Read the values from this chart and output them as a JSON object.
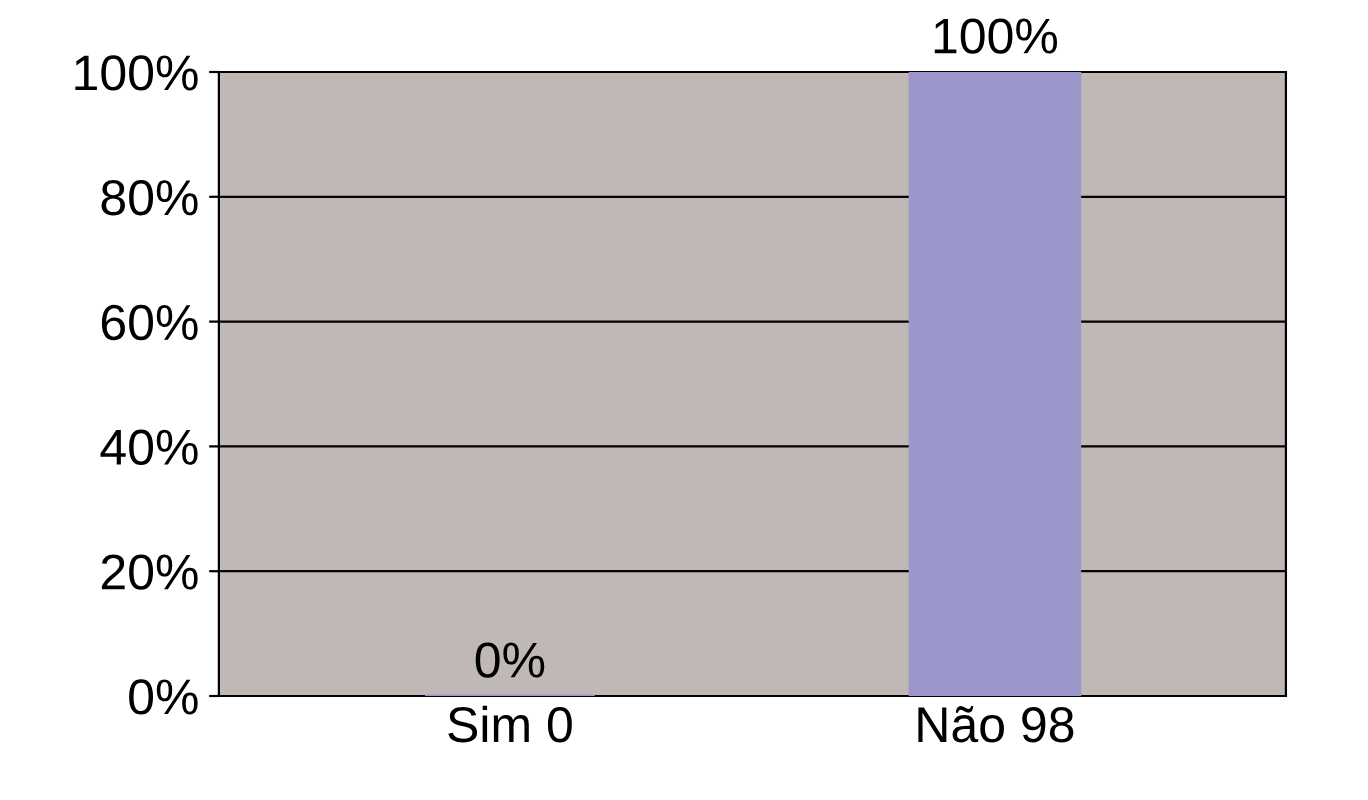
{
  "chart_data": {
    "type": "bar",
    "categories": [
      "Sim 0",
      "Não 98"
    ],
    "values": [
      0,
      100
    ],
    "color": "#9b97cb",
    "value_labels": [
      "0%",
      "100%"
    ],
    "ylim": [
      0,
      100
    ],
    "yticks": [
      {
        "value": 0,
        "label": "0%"
      },
      {
        "value": 20,
        "label": "20%"
      },
      {
        "value": 40,
        "label": "40%"
      },
      {
        "value": 60,
        "label": "60%"
      },
      {
        "value": 80,
        "label": "80%"
      },
      {
        "value": 100,
        "label": "100%"
      }
    ],
    "grid": "y"
  }
}
